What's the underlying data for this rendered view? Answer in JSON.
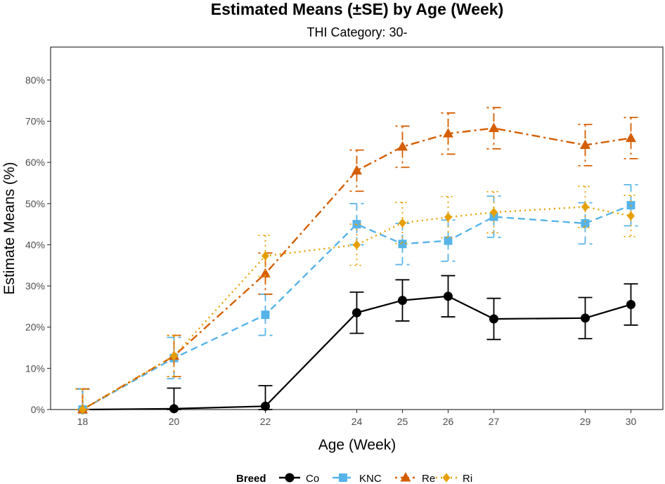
{
  "chart_data": {
    "type": "line",
    "title": "Estimated Means (±SE) by Age (Week)",
    "subtitle": "THI Category: 30-",
    "xlabel": "Age (Week)",
    "ylabel": "Estimate Means (%)",
    "x": [
      18,
      20,
      22,
      24,
      25,
      26,
      27,
      29,
      30
    ],
    "xlim": [
      17.3,
      30.7
    ],
    "ylim": [
      0,
      88
    ],
    "yticks": [
      0,
      10,
      20,
      30,
      40,
      50,
      60,
      70,
      80
    ],
    "ytick_labels": [
      "0%",
      "10%",
      "20%",
      "30%",
      "40%",
      "50%",
      "60%",
      "70%",
      "80%"
    ],
    "xtick_labels": [
      "18",
      "20",
      "22",
      "24",
      "25",
      "26",
      "27",
      "29",
      "30"
    ],
    "grid": false,
    "legend": {
      "title": "Breed",
      "position": "bottom"
    },
    "series": [
      {
        "name": "Co",
        "color": "#000000",
        "marker": "circle",
        "dash": "solid",
        "values": [
          0,
          0.2,
          0.8,
          23.5,
          26.5,
          27.5,
          22.0,
          22.2,
          25.5
        ],
        "se": [
          5,
          5,
          5,
          5,
          5,
          5,
          5,
          5,
          5
        ]
      },
      {
        "name": "KNC",
        "color": "#56B4E9",
        "marker": "square",
        "dash": "dashed",
        "values": [
          0,
          12.5,
          23.0,
          45.0,
          40.2,
          41.0,
          46.8,
          45.2,
          49.6
        ],
        "se": [
          5,
          5,
          5,
          5,
          5,
          5,
          5,
          5,
          5
        ]
      },
      {
        "name": "Re",
        "color": "#D55E00",
        "marker": "triangle",
        "dash": "dotdash",
        "values": [
          0,
          13.0,
          33.0,
          58.0,
          63.8,
          67.0,
          68.3,
          64.2,
          65.9
        ],
        "se": [
          5,
          5,
          5,
          5,
          5,
          5,
          5,
          5,
          5
        ]
      },
      {
        "name": "Ri",
        "color": "#E69F00",
        "marker": "diamond",
        "dash": "dotted",
        "values": [
          0,
          13.0,
          37.3,
          40.0,
          45.3,
          46.7,
          47.9,
          49.2,
          47.0
        ],
        "se": [
          5,
          5,
          5,
          5,
          5,
          5,
          5,
          5,
          5
        ]
      }
    ]
  }
}
